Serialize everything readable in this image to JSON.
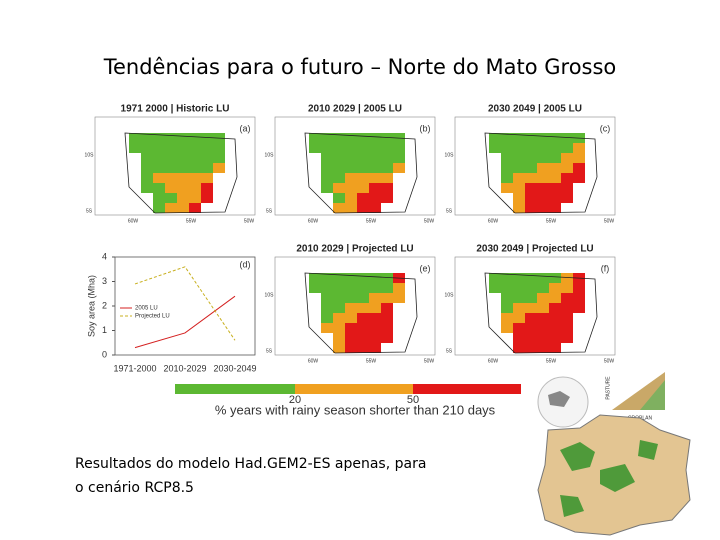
{
  "slide": {
    "title": "Tendências para o futuro – Norte do Mato Grosso",
    "panels": [
      {
        "title": "1971 2000 | Historic LU",
        "letter": "(a)"
      },
      {
        "title": "2010 2029 | 2005 LU",
        "letter": "(b)"
      },
      {
        "title": "2030 2049 | 2005 LU",
        "letter": "(c)"
      },
      {
        "title": "2010 2029 | Projected LU",
        "letter": "(e)"
      },
      {
        "title": "2030 2049 | Projected LU",
        "letter": "(f)"
      }
    ],
    "lat_labels": [
      "10S",
      "5S"
    ],
    "lon_labels": [
      "60W",
      "55W",
      "50W"
    ],
    "panel_d": {
      "letter": "(d)",
      "ylabel": "Soy area (Mha)",
      "categories": [
        "1971-2000",
        "2010-2029",
        "2030-2049"
      ],
      "ylim": [
        0,
        4
      ],
      "yticks": [
        0,
        1,
        2,
        3,
        4
      ],
      "series": [
        {
          "name": "2005 LU",
          "color": "#d42020",
          "dash": false,
          "values": [
            0.3,
            0.9,
            2.4
          ]
        },
        {
          "name": "Projected LU",
          "color": "#c8b020",
          "dash": true,
          "values": [
            2.9,
            3.6,
            0.6
          ]
        }
      ]
    },
    "colorbar": {
      "ticks": [
        "20",
        "50"
      ],
      "caption": "% years with rainy season shorter than 210 days"
    },
    "inset_labels": [
      "PASTURE",
      "CROPLAN"
    ],
    "body_lines": [
      "Resultados do modelo Had.GEM2-ES apenas, para",
      "o cenário RCP8.5"
    ]
  }
}
